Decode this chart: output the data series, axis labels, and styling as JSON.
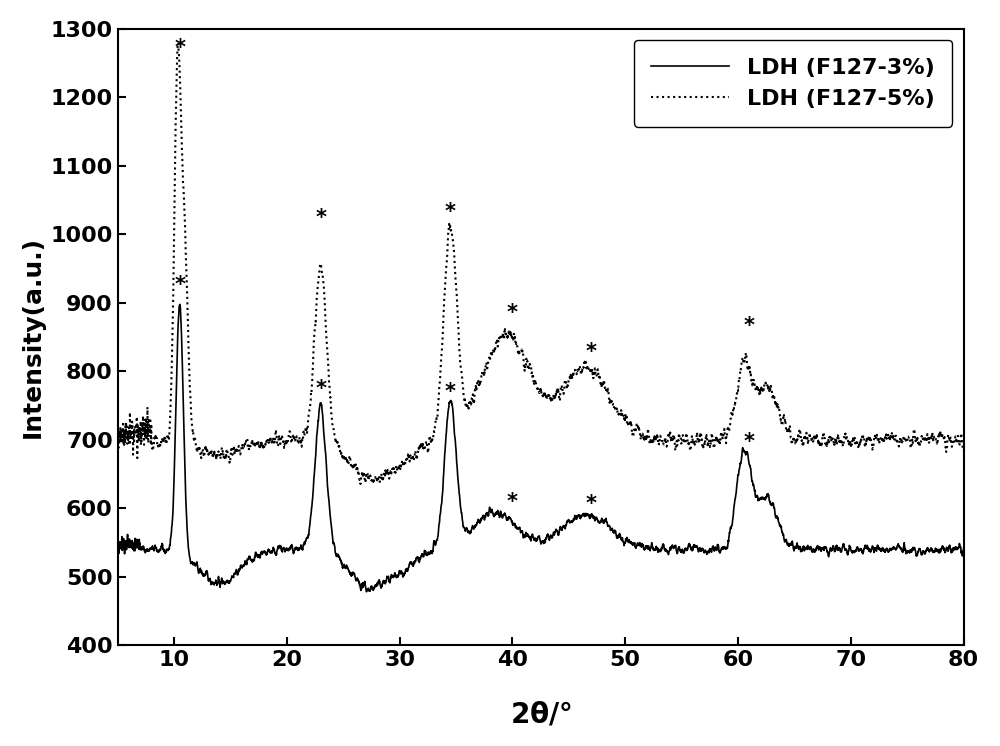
{
  "xlim": [
    5,
    80
  ],
  "ylim": [
    400,
    1300
  ],
  "xticks": [
    10,
    20,
    30,
    40,
    50,
    60,
    70,
    80
  ],
  "yticks": [
    400,
    500,
    600,
    700,
    800,
    900,
    1000,
    1100,
    1200,
    1300
  ],
  "ylabel": "Intensity(a.u.)",
  "legend_labels": [
    "LDH (F127-3%)",
    "LDH (F127-5%)"
  ],
  "background_color": "#ffffff",
  "line_color": "#000000",
  "label_fontsize": 18,
  "tick_fontsize": 16,
  "legend_fontsize": 16
}
